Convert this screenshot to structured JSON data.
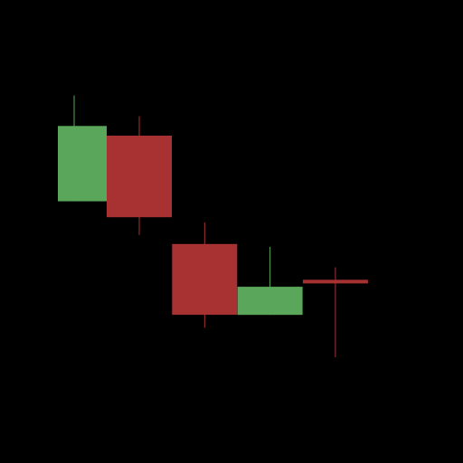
{
  "chart_data": {
    "type": "candlestick",
    "title": "",
    "xlabel": "",
    "ylabel": "",
    "grid": false,
    "legend": "none",
    "background_color": "#000000",
    "up_color": "#5aa65a",
    "down_color": "#a83232",
    "ylim": [
      0,
      100
    ],
    "candles": [
      {
        "open": 58.7,
        "high": 89.2,
        "low": 58.7,
        "close": 80.4
      },
      {
        "open": 77.6,
        "high": 83.2,
        "low": 49.0,
        "close": 54.1
      },
      {
        "open": 46.4,
        "high": 52.6,
        "low": 22.3,
        "close": 26.0
      },
      {
        "open": 26.0,
        "high": 45.6,
        "low": 26.0,
        "close": 34.1
      },
      {
        "open": 36.1,
        "high": 39.7,
        "low": 13.8,
        "close": 35.3
      }
    ]
  }
}
